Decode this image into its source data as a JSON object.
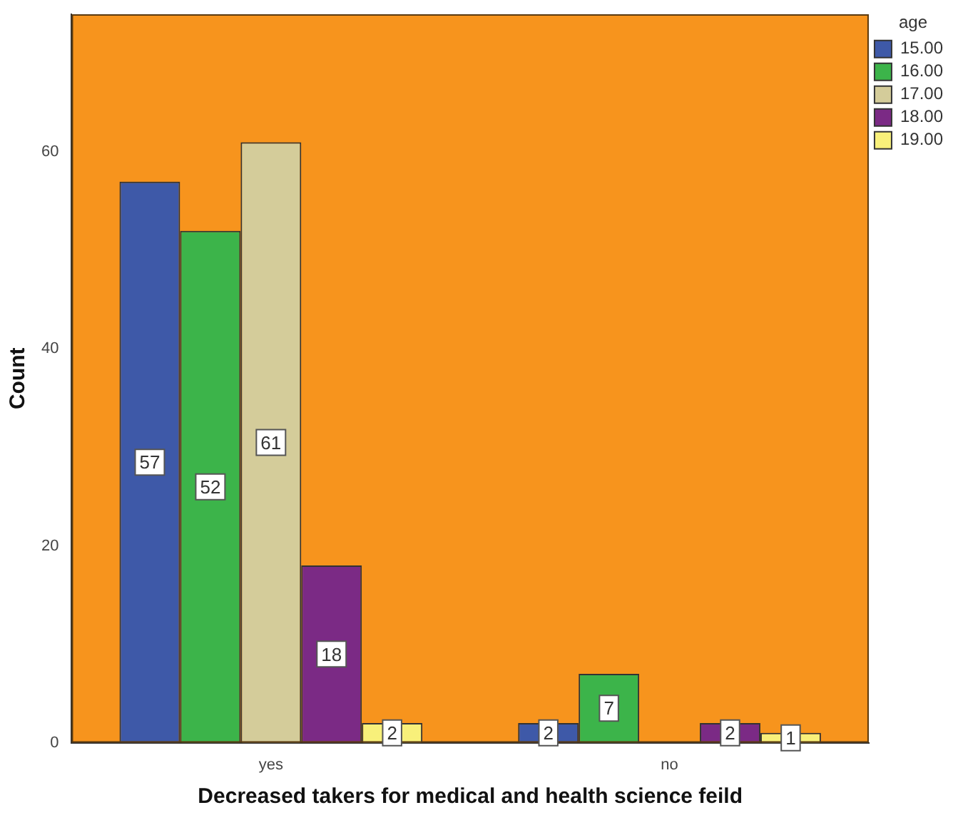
{
  "chart_data": {
    "type": "bar",
    "xlabel": "Decreased takers for medical and health science feild",
    "ylabel": "Count",
    "legend_title": "age",
    "categories": [
      "yes",
      "no"
    ],
    "series": [
      {
        "name": "15.00",
        "color": "#3e59a8",
        "values": [
          57,
          2
        ]
      },
      {
        "name": "16.00",
        "color": "#3cb44a",
        "values": [
          52,
          7
        ]
      },
      {
        "name": "17.00",
        "color": "#d4cc9a",
        "values": [
          61,
          null
        ]
      },
      {
        "name": "18.00",
        "color": "#7b2a85",
        "values": [
          18,
          2
        ]
      },
      {
        "name": "19.00",
        "color": "#f8f07a",
        "values": [
          2,
          1
        ]
      }
    ],
    "ylim": [
      0,
      74
    ],
    "yticks": [
      0,
      20,
      40,
      60
    ],
    "grid": false,
    "legend": "top right",
    "data_labels": true
  }
}
